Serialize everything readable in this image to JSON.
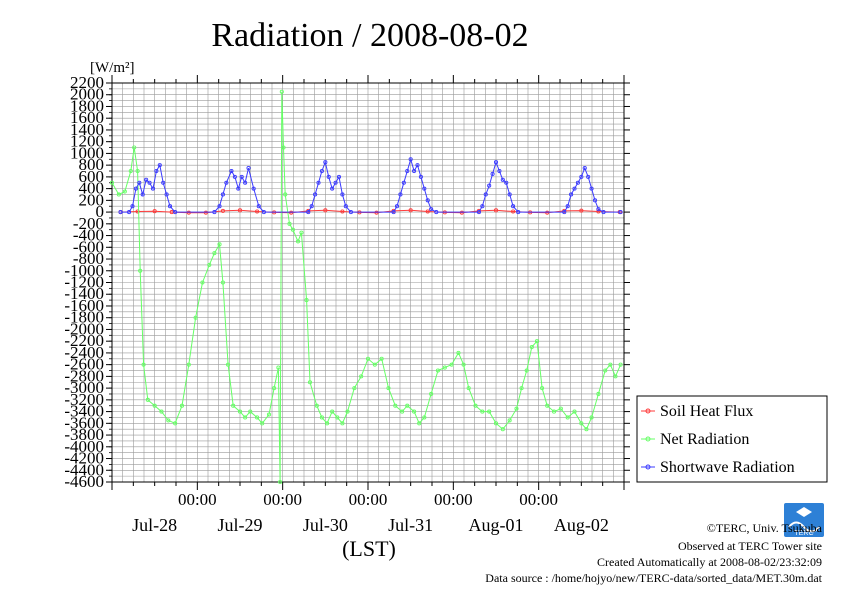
{
  "chart_data": {
    "type": "line",
    "title": "Radiation / 2008-08-02",
    "y_unit": "[W/m²]",
    "xlabel": "(LST)",
    "ylim": [
      -4600,
      2200
    ],
    "y_ticks": [
      2200,
      2000,
      1800,
      1600,
      1400,
      1200,
      1000,
      800,
      600,
      400,
      200,
      0,
      -200,
      -400,
      -600,
      -800,
      -1000,
      -1200,
      -1400,
      -1600,
      -1800,
      -2000,
      -2200,
      -2400,
      -2600,
      -2800,
      -3000,
      -3200,
      -3400,
      -3600,
      -3800,
      -4000,
      -4200,
      -4400,
      -4600
    ],
    "xlim": [
      0,
      6
    ],
    "x_time_labels": [
      "00:00",
      "00:00",
      "00:00",
      "00:00",
      "00:00"
    ],
    "x_day_labels": [
      "Jul-28",
      "Jul-29",
      "Jul-30",
      "Jul-31",
      "Aug-01",
      "Aug-02"
    ],
    "grid": true,
    "legend_position": "right",
    "series": [
      {
        "name": "Soil Heat Flux",
        "color": "#ff3b3b",
        "points": [
          [
            0.1,
            0
          ],
          [
            0.3,
            10
          ],
          [
            0.5,
            15
          ],
          [
            0.7,
            0
          ],
          [
            0.9,
            -10
          ],
          [
            1.1,
            -10
          ],
          [
            1.3,
            20
          ],
          [
            1.5,
            30
          ],
          [
            1.7,
            10
          ],
          [
            1.9,
            -5
          ],
          [
            2.1,
            -10
          ],
          [
            2.3,
            20
          ],
          [
            2.5,
            30
          ],
          [
            2.7,
            10
          ],
          [
            2.9,
            -5
          ],
          [
            3.1,
            -10
          ],
          [
            3.3,
            20
          ],
          [
            3.5,
            30
          ],
          [
            3.7,
            10
          ],
          [
            3.9,
            -5
          ],
          [
            4.1,
            -10
          ],
          [
            4.3,
            20
          ],
          [
            4.5,
            30
          ],
          [
            4.7,
            10
          ],
          [
            4.9,
            -5
          ],
          [
            5.1,
            -10
          ],
          [
            5.3,
            20
          ],
          [
            5.5,
            25
          ],
          [
            5.7,
            10
          ],
          [
            5.95,
            0
          ]
        ]
      },
      {
        "name": "Net Radiation",
        "color": "#66ff66",
        "points": [
          [
            0.0,
            500
          ],
          [
            0.08,
            300
          ],
          [
            0.15,
            350
          ],
          [
            0.22,
            700
          ],
          [
            0.26,
            1100
          ],
          [
            0.3,
            700
          ],
          [
            0.33,
            -1000
          ],
          [
            0.37,
            -2600
          ],
          [
            0.42,
            -3200
          ],
          [
            0.5,
            -3300
          ],
          [
            0.58,
            -3400
          ],
          [
            0.66,
            -3550
          ],
          [
            0.74,
            -3600
          ],
          [
            0.82,
            -3300
          ],
          [
            0.9,
            -2600
          ],
          [
            0.98,
            -1800
          ],
          [
            1.06,
            -1200
          ],
          [
            1.14,
            -900
          ],
          [
            1.2,
            -700
          ],
          [
            1.26,
            -550
          ],
          [
            1.3,
            -1200
          ],
          [
            1.36,
            -2600
          ],
          [
            1.42,
            -3300
          ],
          [
            1.5,
            -3400
          ],
          [
            1.56,
            -3500
          ],
          [
            1.62,
            -3400
          ],
          [
            1.7,
            -3500
          ],
          [
            1.76,
            -3600
          ],
          [
            1.84,
            -3450
          ],
          [
            1.9,
            -3000
          ],
          [
            1.95,
            -2650
          ],
          [
            1.97,
            -4600
          ],
          [
            1.99,
            2050
          ],
          [
            2.01,
            1100
          ],
          [
            2.03,
            300
          ],
          [
            2.08,
            -200
          ],
          [
            2.12,
            -300
          ],
          [
            2.18,
            -500
          ],
          [
            2.22,
            -350
          ],
          [
            2.28,
            -1500
          ],
          [
            2.32,
            -2900
          ],
          [
            2.4,
            -3300
          ],
          [
            2.46,
            -3500
          ],
          [
            2.52,
            -3600
          ],
          [
            2.58,
            -3400
          ],
          [
            2.64,
            -3500
          ],
          [
            2.7,
            -3600
          ],
          [
            2.76,
            -3400
          ],
          [
            2.84,
            -3000
          ],
          [
            2.92,
            -2800
          ],
          [
            3.0,
            -2500
          ],
          [
            3.08,
            -2600
          ],
          [
            3.16,
            -2500
          ],
          [
            3.24,
            -3000
          ],
          [
            3.32,
            -3300
          ],
          [
            3.4,
            -3400
          ],
          [
            3.46,
            -3300
          ],
          [
            3.54,
            -3400
          ],
          [
            3.6,
            -3600
          ],
          [
            3.66,
            -3500
          ],
          [
            3.74,
            -3100
          ],
          [
            3.82,
            -2700
          ],
          [
            3.9,
            -2650
          ],
          [
            3.98,
            -2600
          ],
          [
            4.06,
            -2400
          ],
          [
            4.12,
            -2600
          ],
          [
            4.18,
            -3000
          ],
          [
            4.26,
            -3300
          ],
          [
            4.34,
            -3400
          ],
          [
            4.42,
            -3400
          ],
          [
            4.5,
            -3600
          ],
          [
            4.58,
            -3700
          ],
          [
            4.66,
            -3550
          ],
          [
            4.74,
            -3350
          ],
          [
            4.8,
            -3000
          ],
          [
            4.86,
            -2700
          ],
          [
            4.92,
            -2300
          ],
          [
            4.98,
            -2200
          ],
          [
            5.04,
            -3000
          ],
          [
            5.1,
            -3300
          ],
          [
            5.18,
            -3400
          ],
          [
            5.26,
            -3350
          ],
          [
            5.34,
            -3500
          ],
          [
            5.42,
            -3400
          ],
          [
            5.5,
            -3600
          ],
          [
            5.56,
            -3700
          ],
          [
            5.62,
            -3500
          ],
          [
            5.7,
            -3100
          ],
          [
            5.78,
            -2700
          ],
          [
            5.84,
            -2600
          ],
          [
            5.9,
            -2800
          ],
          [
            5.96,
            -2600
          ]
        ]
      },
      {
        "name": "Shortwave Radiation",
        "color": "#3b3bff",
        "points": [
          [
            0.1,
            0
          ],
          [
            0.2,
            0
          ],
          [
            0.24,
            100
          ],
          [
            0.28,
            400
          ],
          [
            0.32,
            500
          ],
          [
            0.36,
            300
          ],
          [
            0.4,
            550
          ],
          [
            0.44,
            500
          ],
          [
            0.48,
            400
          ],
          [
            0.52,
            700
          ],
          [
            0.56,
            800
          ],
          [
            0.6,
            500
          ],
          [
            0.64,
            300
          ],
          [
            0.68,
            100
          ],
          [
            0.74,
            0
          ],
          [
            1.2,
            0
          ],
          [
            1.26,
            100
          ],
          [
            1.3,
            300
          ],
          [
            1.34,
            500
          ],
          [
            1.4,
            700
          ],
          [
            1.44,
            600
          ],
          [
            1.48,
            400
          ],
          [
            1.52,
            600
          ],
          [
            1.56,
            500
          ],
          [
            1.6,
            750
          ],
          [
            1.66,
            400
          ],
          [
            1.72,
            100
          ],
          [
            1.78,
            0
          ],
          [
            2.3,
            0
          ],
          [
            2.34,
            100
          ],
          [
            2.38,
            300
          ],
          [
            2.42,
            500
          ],
          [
            2.46,
            700
          ],
          [
            2.5,
            850
          ],
          [
            2.54,
            600
          ],
          [
            2.58,
            400
          ],
          [
            2.62,
            500
          ],
          [
            2.66,
            600
          ],
          [
            2.7,
            300
          ],
          [
            2.74,
            100
          ],
          [
            2.8,
            0
          ],
          [
            3.3,
            0
          ],
          [
            3.34,
            100
          ],
          [
            3.38,
            300
          ],
          [
            3.42,
            500
          ],
          [
            3.46,
            700
          ],
          [
            3.5,
            900
          ],
          [
            3.54,
            700
          ],
          [
            3.58,
            800
          ],
          [
            3.62,
            600
          ],
          [
            3.66,
            400
          ],
          [
            3.7,
            200
          ],
          [
            3.74,
            50
          ],
          [
            3.8,
            0
          ],
          [
            4.3,
            0
          ],
          [
            4.34,
            100
          ],
          [
            4.38,
            300
          ],
          [
            4.42,
            450
          ],
          [
            4.46,
            650
          ],
          [
            4.5,
            850
          ],
          [
            4.54,
            700
          ],
          [
            4.58,
            550
          ],
          [
            4.62,
            500
          ],
          [
            4.66,
            300
          ],
          [
            4.7,
            100
          ],
          [
            4.76,
            0
          ],
          [
            5.3,
            0
          ],
          [
            5.34,
            100
          ],
          [
            5.38,
            300
          ],
          [
            5.42,
            400
          ],
          [
            5.46,
            500
          ],
          [
            5.5,
            600
          ],
          [
            5.54,
            750
          ],
          [
            5.58,
            600
          ],
          [
            5.62,
            400
          ],
          [
            5.66,
            200
          ],
          [
            5.7,
            50
          ],
          [
            5.76,
            0
          ],
          [
            5.96,
            0
          ]
        ]
      }
    ]
  },
  "credits": {
    "copyright": "©TERC, Univ. Tsukuba",
    "observed": "Observed at TERC Tower site",
    "created": "Created Automatically at 2008-08-02/23:32:09",
    "source": "Data source : /home/hojyo/new/TERC-data/sorted_data/MET.30m.dat",
    "logo_text": "TERC"
  }
}
